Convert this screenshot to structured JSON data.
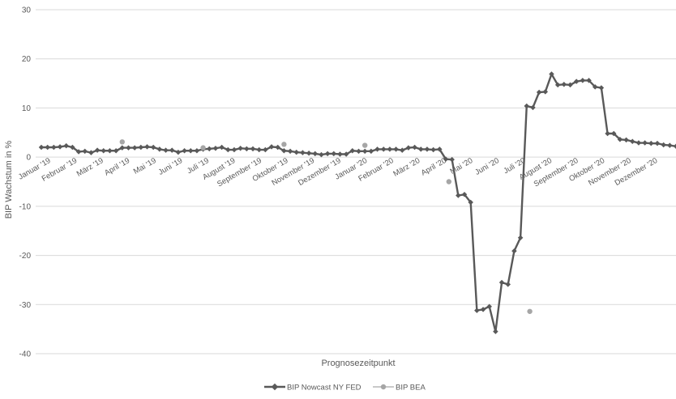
{
  "chart_data": {
    "type": "line",
    "title": "",
    "xlabel": "Prognosezeitpunkt",
    "ylabel": "BIP Wachstum in %",
    "ylim": [
      -40,
      30
    ],
    "yticks": [
      30,
      20,
      10,
      0,
      -10,
      -20,
      -30,
      -40
    ],
    "grid": "horizontal",
    "legend_position": "bottom",
    "x_tick_labels": [
      "Januar '19",
      "Februar '19",
      "März '19",
      "April '19",
      "Mai '19",
      "Juni '19",
      "Juli '19",
      "August '19",
      "September '19",
      "Oktober '19",
      "November '19",
      "Dezember '19",
      "Januar '20",
      "Februar '20",
      "März '20",
      "April '20",
      "Mai '20",
      "Juni '20",
      "Juli '20",
      "August '20",
      "September '20",
      "Oktober '20",
      "November '20",
      "Dezember '20"
    ],
    "x_range_weeks": [
      0,
      102
    ],
    "series": [
      {
        "name": "BIP Nowcast NY FED",
        "color": "#595959",
        "marker": "diamond",
        "line": true,
        "x": [
          0,
          1,
          2,
          3,
          4,
          5,
          6,
          7,
          8,
          9,
          10,
          11,
          12,
          13,
          14,
          15,
          16,
          17,
          18,
          19,
          20,
          21,
          22,
          23,
          24,
          25,
          26,
          27,
          28,
          29,
          30,
          31,
          32,
          33,
          34,
          35,
          36,
          37,
          38,
          39,
          40,
          41,
          42,
          43,
          44,
          45,
          46,
          47,
          48,
          49,
          50,
          51,
          52,
          53,
          54,
          55,
          56,
          57,
          58,
          59,
          60,
          61,
          62,
          63,
          64,
          65,
          66,
          67,
          68,
          69,
          70,
          71,
          72,
          73,
          74,
          75,
          76,
          77,
          78,
          79,
          80,
          81,
          82,
          83,
          84,
          85,
          86,
          87,
          88,
          89,
          90,
          91,
          92,
          93,
          94,
          95,
          96,
          97,
          98,
          99,
          100,
          101,
          102
        ],
        "values": [
          2.0,
          2.0,
          2.0,
          2.1,
          2.3,
          2.0,
          1.1,
          1.2,
          0.9,
          1.4,
          1.3,
          1.3,
          1.3,
          1.9,
          1.9,
          1.9,
          2.0,
          2.1,
          2.0,
          1.6,
          1.4,
          1.4,
          1.0,
          1.3,
          1.3,
          1.3,
          1.6,
          1.7,
          1.8,
          2.0,
          1.5,
          1.5,
          1.8,
          1.7,
          1.7,
          1.5,
          1.5,
          2.1,
          2.0,
          1.3,
          1.2,
          1.0,
          0.9,
          0.8,
          0.7,
          0.5,
          0.7,
          0.7,
          0.6,
          0.6,
          1.3,
          1.2,
          1.2,
          1.2,
          1.6,
          1.6,
          1.6,
          1.6,
          1.4,
          1.9,
          2.0,
          1.6,
          1.6,
          1.5,
          1.6,
          -0.4,
          -0.5,
          -7.8,
          -7.6,
          -9.2,
          -31.2,
          -31.0,
          -30.4,
          -35.5,
          -25.5,
          -25.9,
          -19.1,
          -16.4,
          10.4,
          10.1,
          13.2,
          13.3,
          16.9,
          14.7,
          14.8,
          14.7,
          15.4,
          15.6,
          15.6,
          14.3,
          14.1,
          4.8,
          4.8,
          3.6,
          3.5,
          3.2,
          2.9,
          2.9,
          2.8,
          2.8,
          2.5,
          2.4,
          2.2
        ]
      },
      {
        "name": "BIP BEA",
        "color": "#a6a6a6",
        "marker": "circle",
        "line": false,
        "x": [
          13,
          26,
          39,
          52,
          65.5,
          78.5
        ],
        "values": [
          3.1,
          1.9,
          2.6,
          2.4,
          -5.0,
          -31.4
        ]
      }
    ]
  }
}
